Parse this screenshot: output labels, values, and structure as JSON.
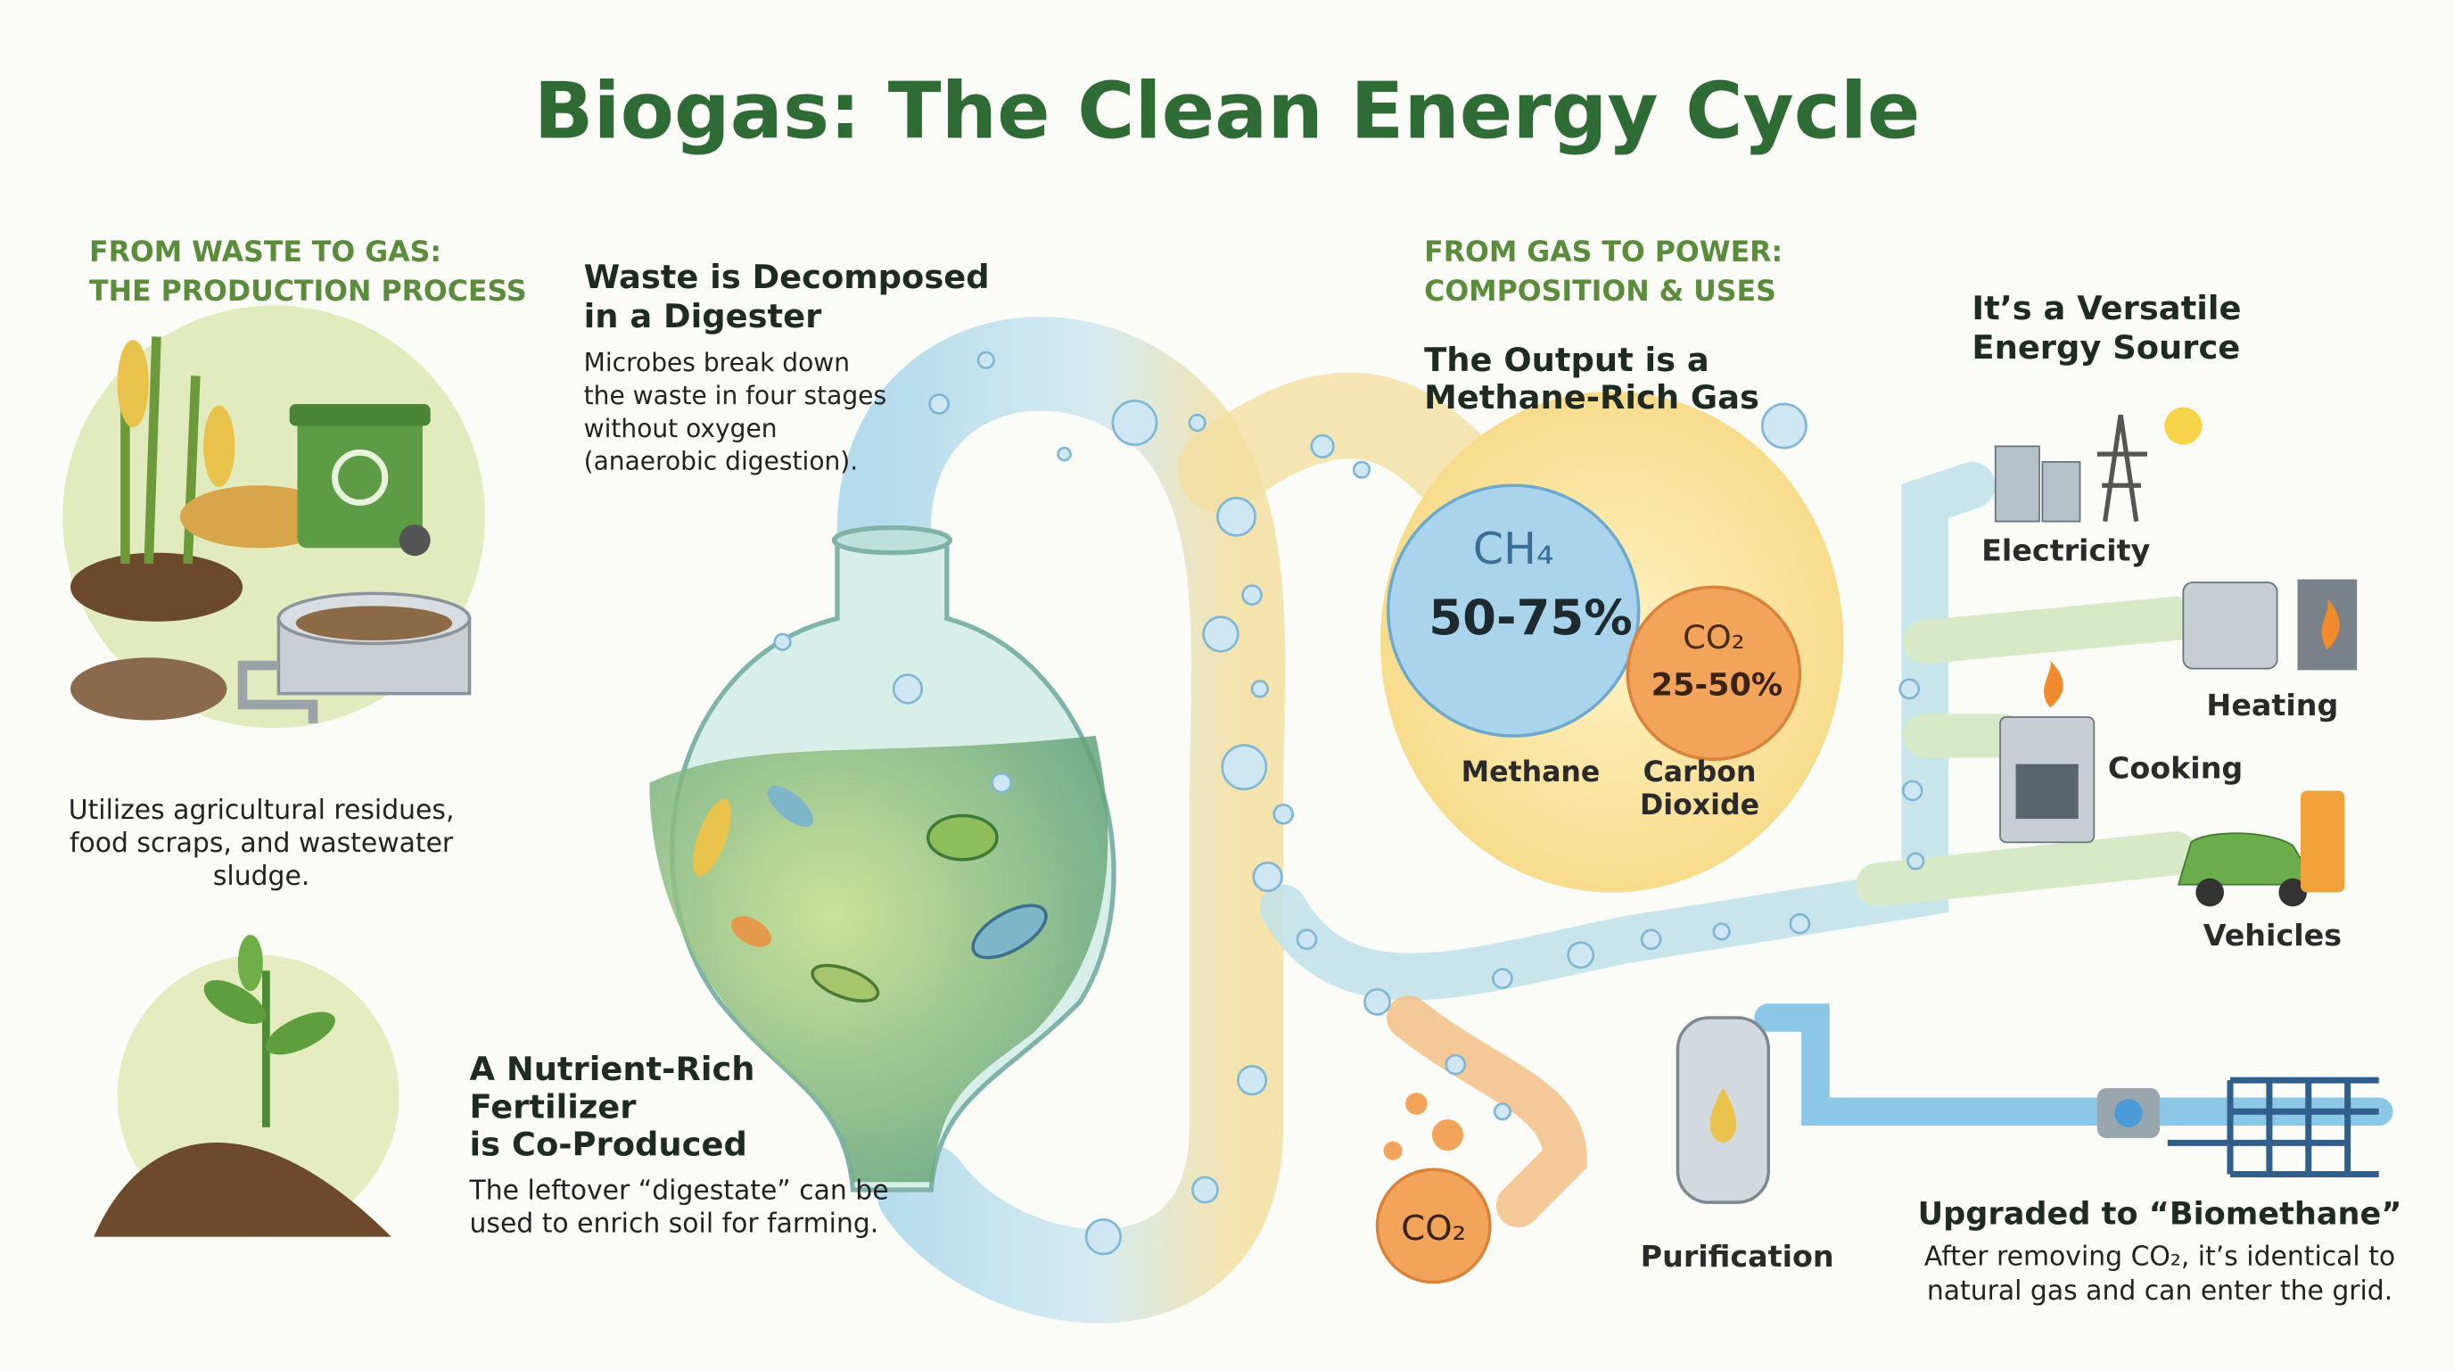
{
  "title": "Biogas: The Clean Energy Cycle",
  "production": {
    "heading": [
      "FROM WASTE TO GAS:",
      "THE PRODUCTION PROCESS"
    ],
    "feedstock_caption": [
      "Utilizes agricultural residues,",
      "food scraps, and wastewater",
      "sludge."
    ],
    "digester": {
      "heading": [
        "Waste is Decomposed",
        "in a Digester"
      ],
      "body": [
        "Microbes break down",
        "the waste in four stages",
        "without oxygen",
        "(anaerobic digestion)."
      ]
    },
    "fertilizer": {
      "heading": [
        "A Nutrient-Rich",
        "Fertilizer",
        "is Co-Produced"
      ],
      "body": [
        "The leftover “digestate” can be",
        "used to enrich soil for farming."
      ]
    }
  },
  "power": {
    "heading": [
      "FROM GAS TO POWER:",
      "COMPOSITION & USES"
    ],
    "output_heading": [
      "The Output is a",
      "Methane-Rich Gas"
    ],
    "methane": {
      "formula": "CH₄",
      "share": "50-75%",
      "name": "Methane"
    },
    "co2": {
      "formula": "CO₂",
      "share": "25-50%",
      "name": [
        "Carbon",
        "Dioxide"
      ]
    },
    "uses": {
      "heading": [
        "It’s a Versatile",
        "Energy Source"
      ],
      "items": [
        "Electricity",
        "Heating",
        "Cooking",
        "Vehicles"
      ]
    },
    "purification": {
      "byproduct": "CO₂",
      "label": "Purification"
    },
    "biomethane": {
      "heading": "Upgraded to “Biomethane”",
      "body": [
        "After removing CO₂, it’s identical to",
        "natural gas and can enter the grid."
      ]
    }
  }
}
